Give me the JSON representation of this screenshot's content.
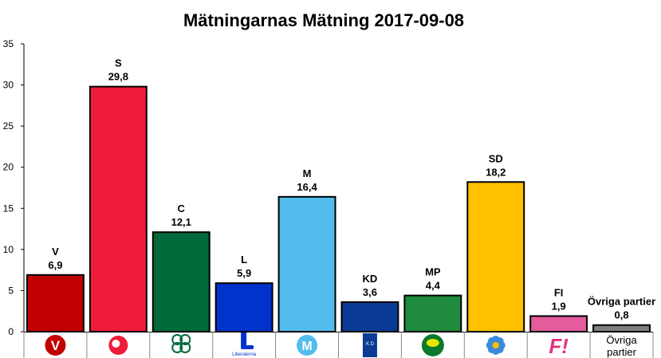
{
  "chart_data": {
    "type": "bar",
    "title": "Mätningarnas Mätning 2017-09-08",
    "xlabel": "",
    "ylabel": "",
    "ylim": [
      0,
      35
    ],
    "yticks": [
      0,
      5,
      10,
      15,
      20,
      25,
      30,
      35
    ],
    "grid": false,
    "categories": [
      "V",
      "S",
      "C",
      "L",
      "M",
      "KD",
      "MP",
      "SD",
      "FI",
      "Övriga partier"
    ],
    "values": [
      6.9,
      29.8,
      12.1,
      5.9,
      16.4,
      3.6,
      4.4,
      18.2,
      1.9,
      0.8
    ],
    "value_labels": [
      "6,9",
      "29,8",
      "12,1",
      "5,9",
      "16,4",
      "3,6",
      "4,4",
      "18,2",
      "1,9",
      "0,8"
    ],
    "colors": [
      "#C00000",
      "#EE1C39",
      "#006A3A",
      "#0033CC",
      "#52BDEC",
      "#0A3A94",
      "#1F8B3C",
      "#FFC000",
      "#E35C9C",
      "#7F7F7F"
    ],
    "logos": [
      "V",
      "S",
      "clover",
      "L",
      "M",
      "KD",
      "dandelion-leaf",
      "blue-flower",
      "F!",
      "Övriga partier"
    ],
    "logo_bottom_labels": {
      "L": "Liberalerna",
      "KD": "K D"
    }
  }
}
